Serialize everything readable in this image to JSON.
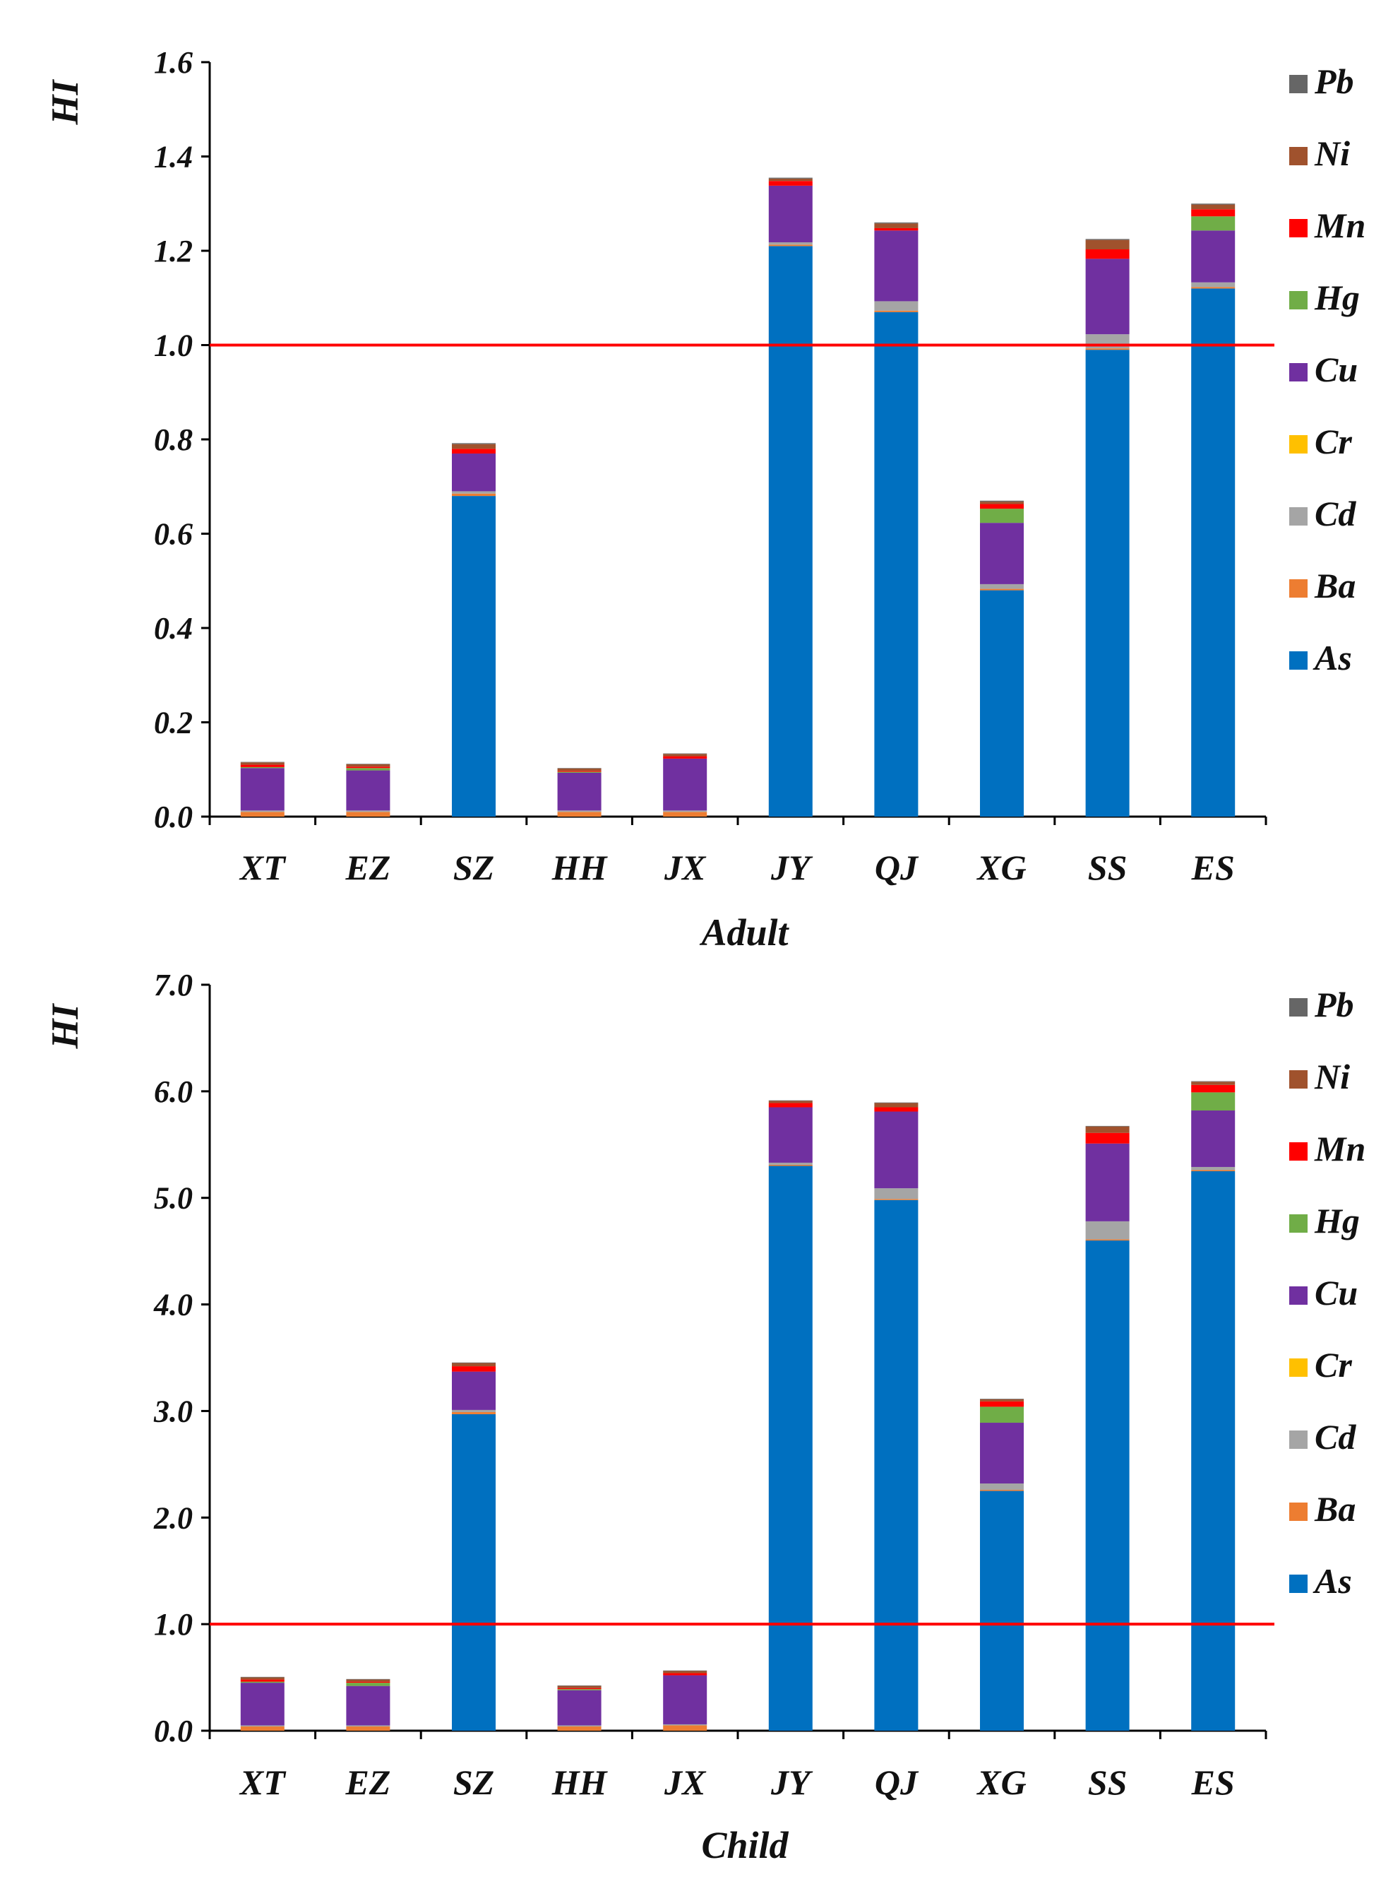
{
  "chart_data": [
    {
      "type": "bar",
      "stacked": true,
      "xlabel": "Adult",
      "ylabel": "HI",
      "ylim": [
        0,
        1.6
      ],
      "yticks": [
        0.0,
        0.2,
        0.4,
        0.6,
        0.8,
        1.0,
        1.2,
        1.4,
        1.6
      ],
      "ytick_labels": [
        "0.0",
        "0.2",
        "0.4",
        "0.6",
        "0.8",
        "1.0",
        "1.2",
        "1.4",
        "1.6"
      ],
      "reference_line": 1.0,
      "categories": [
        "XT",
        "EZ",
        "SZ",
        "HH",
        "JX",
        "JY",
        "QJ",
        "XG",
        "SS",
        "ES"
      ],
      "series": [
        {
          "name": "As",
          "values": [
            0.0,
            0.0,
            0.68,
            0.0,
            0.0,
            1.21,
            1.07,
            0.48,
            0.99,
            1.12
          ]
        },
        {
          "name": "Ba",
          "values": [
            0.01,
            0.01,
            0.005,
            0.01,
            0.01,
            0.003,
            0.003,
            0.003,
            0.003,
            0.003
          ]
        },
        {
          "name": "Cd",
          "values": [
            0.003,
            0.003,
            0.005,
            0.003,
            0.003,
            0.005,
            0.02,
            0.01,
            0.03,
            0.01
          ]
        },
        {
          "name": "Cr",
          "values": [
            0.0,
            0.0,
            0.0,
            0.0,
            0.0,
            0.0,
            0.0,
            0.0,
            0.0,
            0.0
          ]
        },
        {
          "name": "Cu",
          "values": [
            0.09,
            0.085,
            0.08,
            0.08,
            0.11,
            0.12,
            0.15,
            0.13,
            0.16,
            0.11
          ]
        },
        {
          "name": "Hg",
          "values": [
            0.002,
            0.005,
            0.0,
            0.002,
            0.0,
            0.0,
            0.0,
            0.03,
            0.0,
            0.03
          ]
        },
        {
          "name": "Mn",
          "values": [
            0.005,
            0.003,
            0.01,
            0.002,
            0.005,
            0.01,
            0.005,
            0.01,
            0.02,
            0.015
          ]
        },
        {
          "name": "Ni",
          "values": [
            0.005,
            0.005,
            0.01,
            0.005,
            0.005,
            0.005,
            0.01,
            0.005,
            0.02,
            0.01
          ]
        },
        {
          "name": "Pb",
          "values": [
            0.001,
            0.001,
            0.002,
            0.001,
            0.001,
            0.002,
            0.002,
            0.002,
            0.002,
            0.002
          ]
        }
      ]
    },
    {
      "type": "bar",
      "stacked": true,
      "xlabel": "Child",
      "ylabel": "HI",
      "ylim": [
        0,
        7.0
      ],
      "yticks": [
        0.0,
        1.0,
        2.0,
        3.0,
        4.0,
        5.0,
        6.0,
        7.0
      ],
      "ytick_labels": [
        "0.0",
        "1.0",
        "2.0",
        "3.0",
        "4.0",
        "5.0",
        "6.0",
        "7.0"
      ],
      "reference_line": 1.0,
      "categories": [
        "XT",
        "EZ",
        "SZ",
        "HH",
        "JX",
        "JY",
        "QJ",
        "XG",
        "SS",
        "ES"
      ],
      "series": [
        {
          "name": "As",
          "values": [
            0.0,
            0.0,
            2.97,
            0.0,
            0.0,
            5.3,
            4.98,
            2.25,
            4.6,
            5.25
          ]
        },
        {
          "name": "Ba",
          "values": [
            0.04,
            0.04,
            0.02,
            0.04,
            0.05,
            0.01,
            0.01,
            0.01,
            0.01,
            0.01
          ]
        },
        {
          "name": "Cd",
          "values": [
            0.01,
            0.01,
            0.02,
            0.01,
            0.01,
            0.02,
            0.1,
            0.06,
            0.17,
            0.03
          ]
        },
        {
          "name": "Cr",
          "values": [
            0.0,
            0.0,
            0.0,
            0.0,
            0.0,
            0.0,
            0.0,
            0.0,
            0.0,
            0.0
          ]
        },
        {
          "name": "Cu",
          "values": [
            0.4,
            0.37,
            0.36,
            0.33,
            0.46,
            0.52,
            0.72,
            0.57,
            0.73,
            0.53
          ]
        },
        {
          "name": "Hg",
          "values": [
            0.01,
            0.03,
            0.0,
            0.01,
            0.0,
            0.0,
            0.0,
            0.15,
            0.0,
            0.17
          ]
        },
        {
          "name": "Mn",
          "values": [
            0.02,
            0.01,
            0.05,
            0.01,
            0.02,
            0.04,
            0.04,
            0.05,
            0.1,
            0.07
          ]
        },
        {
          "name": "Ni",
          "values": [
            0.02,
            0.02,
            0.03,
            0.02,
            0.02,
            0.02,
            0.04,
            0.02,
            0.06,
            0.03
          ]
        },
        {
          "name": "Pb",
          "values": [
            0.005,
            0.005,
            0.005,
            0.005,
            0.005,
            0.005,
            0.005,
            0.005,
            0.005,
            0.005
          ]
        }
      ]
    }
  ],
  "series_colors": {
    "As": "#0070C0",
    "Ba": "#ED7D31",
    "Cd": "#A5A5A5",
    "Cr": "#FFC000",
    "Cu": "#7030A0",
    "Hg": "#70AD47",
    "Mn": "#FF0000",
    "Ni": "#A0522D",
    "Pb": "#666666"
  },
  "legend_order": [
    "Pb",
    "Ni",
    "Mn",
    "Hg",
    "Cu",
    "Cr",
    "Cd",
    "Ba",
    "As"
  ],
  "reference_line_color": "#FF0000"
}
